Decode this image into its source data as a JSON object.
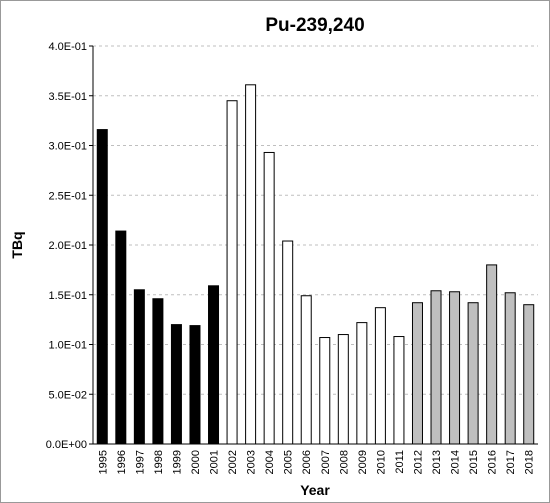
{
  "chart_data": {
    "type": "bar",
    "title": "Pu-239,240",
    "x_label": "Year",
    "y_label": "TBq",
    "categories": [
      "1995",
      "1996",
      "1997",
      "1998",
      "1999",
      "2000",
      "2001",
      "2002",
      "2003",
      "2004",
      "2005",
      "2006",
      "2007",
      "2008",
      "2009",
      "2010",
      "2011",
      "2012",
      "2013",
      "2014",
      "2015",
      "2016",
      "2017",
      "2018"
    ],
    "values": [
      0.316,
      0.214,
      0.155,
      0.146,
      0.12,
      0.119,
      0.159,
      0.345,
      0.361,
      0.293,
      0.204,
      0.149,
      0.107,
      0.11,
      0.122,
      0.137,
      0.108,
      0.142,
      0.154,
      0.153,
      0.142,
      0.18,
      0.152,
      0.14
    ],
    "colors": [
      "#000000",
      "#000000",
      "#000000",
      "#000000",
      "#000000",
      "#000000",
      "#000000",
      "#ffffff",
      "#ffffff",
      "#ffffff",
      "#ffffff",
      "#ffffff",
      "#ffffff",
      "#ffffff",
      "#ffffff",
      "#ffffff",
      "#ffffff",
      "#bfbfbf",
      "#bfbfbf",
      "#bfbfbf",
      "#bfbfbf",
      "#bfbfbf",
      "#bfbfbf",
      "#bfbfbf"
    ],
    "ylim": [
      0,
      0.4
    ],
    "yticks": [
      {
        "value": 0,
        "label": "0.0E+00"
      },
      {
        "value": 0.05,
        "label": "5.0E-02"
      },
      {
        "value": 0.1,
        "label": "1.0E-01"
      },
      {
        "value": 0.15,
        "label": "1.5E-01"
      },
      {
        "value": 0.2,
        "label": "2.0E-01"
      },
      {
        "value": 0.25,
        "label": "2.5E-01"
      },
      {
        "value": 0.3,
        "label": "3.0E-01"
      },
      {
        "value": 0.35,
        "label": "3.5E-01"
      },
      {
        "value": 0.4,
        "label": "4.0E-01"
      }
    ],
    "grid": true
  }
}
